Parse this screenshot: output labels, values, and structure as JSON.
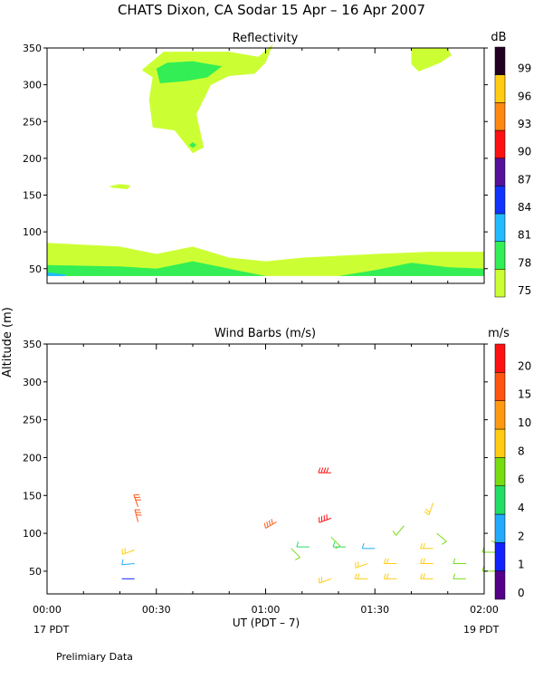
{
  "title": "CHATS Dixon, CA  Sodar  15 Apr – 16 Apr 2007",
  "ylabel": "Altitude (m)",
  "xlabel": "UT  (PDT – 7)",
  "x_start_label": "17 PDT",
  "x_end_label": "19 PDT",
  "footer": "Prelimiary Data",
  "chart_data": [
    {
      "type": "heatmap",
      "title": "Reflectivity",
      "colorbar_unit": "dB",
      "x_ticks": [
        "00:00",
        "00:30",
        "01:00",
        "01:30",
        "02:00"
      ],
      "y_ticks": [
        50,
        100,
        150,
        200,
        250,
        300,
        350
      ],
      "xlim": [
        "00:00",
        "02:00"
      ],
      "ylim": [
        30,
        350
      ],
      "colorbar": {
        "levels": [
          75,
          78,
          81,
          84,
          87,
          90,
          93,
          96,
          99
        ],
        "colors": [
          "#ccff33",
          "#33ee55",
          "#22bbff",
          "#1133ff",
          "#55119a",
          "#ff1111",
          "#ff8811",
          "#ffcc11",
          "#220022"
        ]
      },
      "contours": [
        {
          "level": 75,
          "points": [
            [
              "00:00",
              85
            ],
            [
              "00:20",
              80
            ],
            [
              "00:30",
              70
            ],
            [
              "00:40",
              80
            ],
            [
              "00:50",
              65
            ],
            [
              "01:00",
              60
            ],
            [
              "01:10",
              65
            ],
            [
              "01:30",
              70
            ],
            [
              "01:45",
              73
            ],
            [
              "02:00",
              73
            ],
            [
              "02:00",
              40
            ],
            [
              "00:00",
              40
            ]
          ]
        },
        {
          "level": 78,
          "points": [
            [
              "00:00",
              55
            ],
            [
              "00:20",
              53
            ],
            [
              "00:30",
              50
            ],
            [
              "00:40",
              60
            ],
            [
              "00:50",
              50
            ],
            [
              "01:00",
              40
            ],
            [
              "01:20",
              40
            ],
            [
              "01:30",
              48
            ],
            [
              "01:40",
              58
            ],
            [
              "01:50",
              52
            ],
            [
              "02:00",
              50
            ],
            [
              "02:00",
              40
            ],
            [
              "00:00",
              40
            ]
          ]
        },
        {
          "level": 81,
          "points": [
            [
              "00:00",
              45
            ],
            [
              "00:05",
              42
            ],
            [
              "00:05",
              40
            ],
            [
              "00:00",
              40
            ]
          ]
        },
        {
          "level": 75,
          "points": [
            [
              "00:26",
              320
            ],
            [
              "00:32",
              345
            ],
            [
              "00:50",
              345
            ],
            [
              "00:58",
              338
            ],
            [
              "01:02",
              355
            ],
            [
              "01:00",
              330
            ],
            [
              "00:57",
              315
            ],
            [
              "00:50",
              312
            ],
            [
              "00:45",
              300
            ],
            [
              "00:41",
              260
            ],
            [
              "00:43",
              215
            ],
            [
              "00:40",
              207
            ],
            [
              "00:35",
              238
            ],
            [
              "00:29",
              242
            ],
            [
              "00:28",
              280
            ],
            [
              "00:29",
              310
            ]
          ]
        },
        {
          "level": 78,
          "points": [
            [
              "00:30",
              322
            ],
            [
              "00:33",
              330
            ],
            [
              "00:40",
              332
            ],
            [
              "00:48",
              325
            ],
            [
              "00:44",
              310
            ],
            [
              "00:38",
              305
            ],
            [
              "00:31",
              302
            ]
          ]
        },
        {
          "level": 78,
          "points": [
            [
              "00:40",
              222
            ],
            [
              "00:41",
              218
            ],
            [
              "00:40",
              214
            ],
            [
              "00:39",
              218
            ]
          ]
        },
        {
          "level": 75,
          "points": [
            [
              "00:17",
              162
            ],
            [
              "00:20",
              165
            ],
            [
              "00:23",
              163
            ],
            [
              "00:22",
              158
            ],
            [
              "00:18",
              160
            ]
          ]
        },
        {
          "level": 75,
          "points": [
            [
              "01:40",
              350
            ],
            [
              "01:50",
              350
            ],
            [
              "01:51",
              340
            ],
            [
              "01:48",
              330
            ],
            [
              "01:42",
              318
            ],
            [
              "01:40",
              328
            ]
          ]
        }
      ]
    },
    {
      "type": "scatter",
      "title": "Wind Barbs (m/s)",
      "colorbar_unit": "m/s",
      "x_ticks": [
        "00:00",
        "00:30",
        "01:00",
        "01:30",
        "02:00"
      ],
      "y_ticks": [
        50,
        100,
        150,
        200,
        250,
        300,
        350
      ],
      "xlim": [
        "00:00",
        "02:00"
      ],
      "ylim": [
        20,
        350
      ],
      "colorbar": {
        "levels": [
          0,
          1,
          2,
          4,
          6,
          8,
          10,
          15,
          20
        ],
        "colors": [
          "#550088",
          "#1122ff",
          "#22aaff",
          "#22dd66",
          "#77dd11",
          "#ffcc11",
          "#ff9911",
          "#ff5511",
          "#ff1111"
        ]
      },
      "barbs": [
        {
          "time": "00:25",
          "altitude": 135,
          "speed": 16,
          "dir": 340
        },
        {
          "time": "00:25",
          "altitude": 115,
          "speed": 16,
          "dir": 345
        },
        {
          "time": "00:24",
          "altitude": 78,
          "speed": 9,
          "dir": 250
        },
        {
          "time": "00:24",
          "altitude": 60,
          "speed": 3,
          "dir": 265
        },
        {
          "time": "00:24",
          "altitude": 40,
          "speed": 1,
          "dir": 270
        },
        {
          "time": "01:03",
          "altitude": 115,
          "speed": 18,
          "dir": 240
        },
        {
          "time": "01:07",
          "altitude": 80,
          "speed": 6,
          "dir": 135
        },
        {
          "time": "01:12",
          "altitude": 82,
          "speed": 5,
          "dir": 270
        },
        {
          "time": "01:18",
          "altitude": 180,
          "speed": 22,
          "dir": 270
        },
        {
          "time": "01:18",
          "altitude": 120,
          "speed": 22,
          "dir": 250
        },
        {
          "time": "01:18",
          "altitude": 95,
          "speed": 6,
          "dir": 135
        },
        {
          "time": "01:22",
          "altitude": 82,
          "speed": 5,
          "dir": 270
        },
        {
          "time": "01:18",
          "altitude": 40,
          "speed": 9,
          "dir": 250
        },
        {
          "time": "01:30",
          "altitude": 80,
          "speed": 3,
          "dir": 270
        },
        {
          "time": "01:28",
          "altitude": 60,
          "speed": 9,
          "dir": 250
        },
        {
          "time": "01:28",
          "altitude": 40,
          "speed": 9,
          "dir": 270
        },
        {
          "time": "01:38",
          "altitude": 110,
          "speed": 6,
          "dir": 220
        },
        {
          "time": "01:36",
          "altitude": 60,
          "speed": 9,
          "dir": 270
        },
        {
          "time": "01:36",
          "altitude": 40,
          "speed": 9,
          "dir": 270
        },
        {
          "time": "01:46",
          "altitude": 140,
          "speed": 9,
          "dir": 200
        },
        {
          "time": "01:47",
          "altitude": 100,
          "speed": 6,
          "dir": 130
        },
        {
          "time": "01:46",
          "altitude": 80,
          "speed": 9,
          "dir": 270
        },
        {
          "time": "01:46",
          "altitude": 60,
          "speed": 9,
          "dir": 270
        },
        {
          "time": "01:46",
          "altitude": 40,
          "speed": 9,
          "dir": 270
        },
        {
          "time": "01:55",
          "altitude": 60,
          "speed": 6,
          "dir": 270
        },
        {
          "time": "01:55",
          "altitude": 40,
          "speed": 6,
          "dir": 270
        },
        {
          "time": "02:02",
          "altitude": 90,
          "speed": 6,
          "dir": 110
        },
        {
          "time": "02:03",
          "altitude": 75,
          "speed": 6,
          "dir": 270
        },
        {
          "time": "02:03",
          "altitude": 50,
          "speed": 6,
          "dir": 270
        }
      ]
    }
  ]
}
